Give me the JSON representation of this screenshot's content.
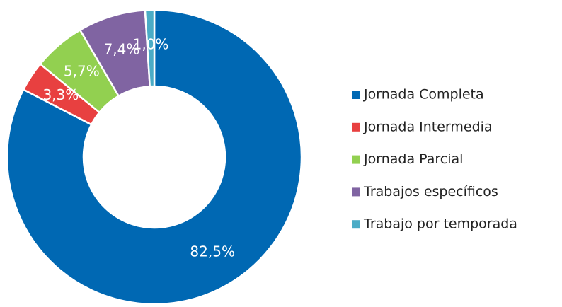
{
  "chart_data": {
    "type": "donut",
    "categories": [
      "Jornada Completa",
      "Jornada Intermedia",
      "Jornada Parcial",
      "Trabajos específicos",
      "Trabajo por temporada"
    ],
    "values": [
      82.5,
      3.3,
      5.7,
      7.4,
      1.0
    ],
    "value_labels": [
      "82,5%",
      "3,3%",
      "5,7%",
      "7,4%",
      "1,0%"
    ],
    "colors": [
      "#0068b3",
      "#e84040",
      "#92d050",
      "#8064a2",
      "#4bacc6"
    ],
    "legend": "right"
  }
}
